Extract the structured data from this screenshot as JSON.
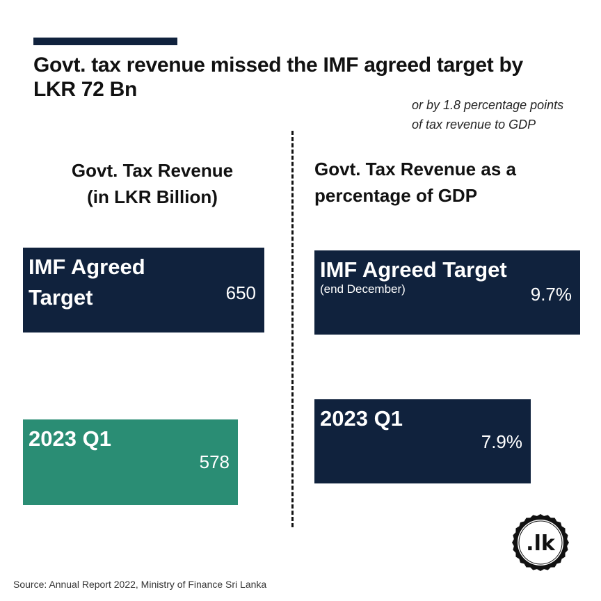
{
  "headline": "Govt. tax revenue missed the IMF agreed target by LKR 72 Bn",
  "subnote": {
    "line1": "or by 1.8 percentage points",
    "line2": "of tax revenue to GDP"
  },
  "source": "Source: Annual Report 2022, Ministry of Finance Sri Lanka",
  "logo_text": ".lk",
  "colors": {
    "navy": "#10223d",
    "green": "#2a8d74",
    "rule": "#10223d"
  },
  "chart_data": [
    {
      "type": "bar",
      "orientation": "horizontal",
      "title": "Govt. Tax Revenue (in LKR Billion)",
      "title_line1": "Govt. Tax Revenue",
      "title_line2": "(in LKR Billion)",
      "categories": [
        "IMF Agreed Target",
        "2023 Q1"
      ],
      "cat_label_lines": [
        [
          "IMF Agreed",
          "Target"
        ],
        [
          "2023 Q1"
        ]
      ],
      "values": [
        650,
        578
      ],
      "value_labels": [
        "650",
        "578"
      ],
      "bar_colors": [
        "#10223d",
        "#2a8d74"
      ],
      "xlim": [
        0,
        650
      ],
      "grid": false
    },
    {
      "type": "bar",
      "orientation": "horizontal",
      "title": "Govt. Tax Revenue as a percentage of GDP",
      "title_line1": "Govt. Tax Revenue as a",
      "title_line2": "percentage of GDP",
      "categories": [
        "IMF Agreed Target",
        "2023 Q1"
      ],
      "sublabels": [
        "(end December)",
        ""
      ],
      "values": [
        9.7,
        7.9
      ],
      "value_labels": [
        "9.7%",
        "7.9%"
      ],
      "bar_colors": [
        "#10223d",
        "#10223d"
      ],
      "xlim": [
        0,
        9.7
      ],
      "grid": false
    }
  ]
}
